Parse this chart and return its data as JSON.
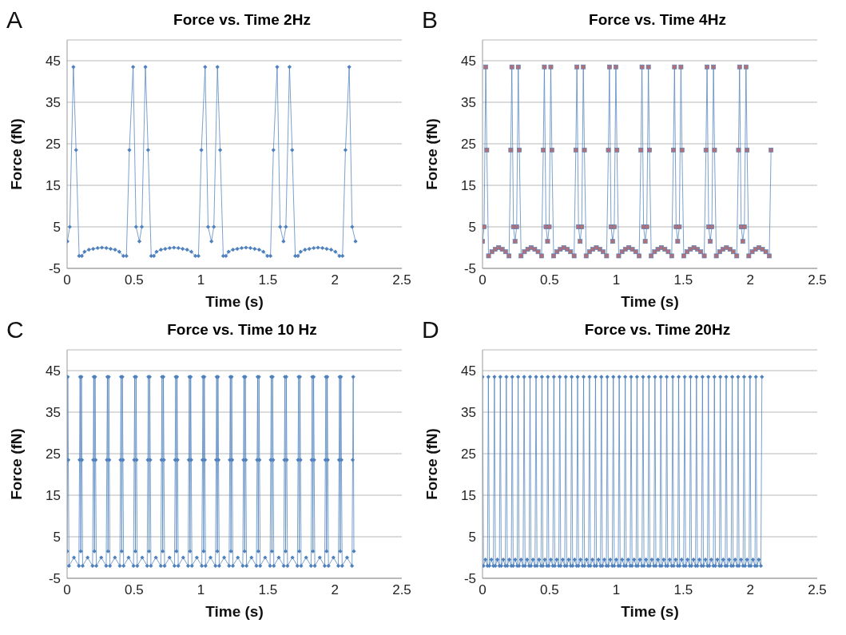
{
  "chart_data": [
    {
      "type": "line",
      "title": "Force vs. Time 2Hz",
      "xlabel": "Time (s)",
      "ylabel": "Force (fN)",
      "annotations": [
        "A"
      ],
      "xlim": [
        0,
        2.5
      ],
      "xticks": [
        0,
        0.5,
        1,
        1.5,
        2,
        2.5
      ],
      "ylim": [
        -5,
        50
      ],
      "yticks": [
        -5,
        5,
        15,
        25,
        35,
        45
      ],
      "grid": "y",
      "marker": "diamond",
      "line_style": "solid",
      "series": [
        {
          "color": "#4f81bd",
          "x": [
            0.002,
            0.02,
            0.047,
            0.067,
            0.09,
            0.11,
            0.13,
            0.163,
            0.195,
            0.228,
            0.26,
            0.293,
            0.325,
            0.358,
            0.39,
            0.42,
            0.443,
            0.465,
            0.493,
            0.515,
            0.54,
            0.558,
            0.585,
            0.605,
            0.628,
            0.648,
            0.668,
            0.701,
            0.733,
            0.766,
            0.798,
            0.831,
            0.863,
            0.896,
            0.928,
            0.958,
            0.981,
            1.003,
            1.031,
            1.053,
            1.078,
            1.096,
            1.123,
            1.143,
            1.166,
            1.186,
            1.206,
            1.239,
            1.271,
            1.304,
            1.336,
            1.369,
            1.401,
            1.434,
            1.466,
            1.496,
            1.519,
            1.541,
            1.569,
            1.591,
            1.616,
            1.634,
            1.661,
            1.681,
            1.704,
            1.724,
            1.744,
            1.777,
            1.809,
            1.842,
            1.874,
            1.907,
            1.939,
            1.972,
            2.004,
            2.034,
            2.057,
            2.079,
            2.107,
            2.129,
            2.154
          ],
          "values": [
            1.5,
            5,
            43.5,
            23.5,
            -2,
            -2,
            -1,
            -0.5,
            -0.3,
            -0.1,
            0,
            -0.1,
            -0.3,
            -0.5,
            -1,
            -2,
            -2,
            23.5,
            43.5,
            5,
            1.5,
            5,
            43.5,
            23.5,
            -2,
            -2,
            -1,
            -0.5,
            -0.3,
            -0.1,
            0,
            -0.1,
            -0.3,
            -0.5,
            -1,
            -2,
            -2,
            23.5,
            43.5,
            5,
            1.5,
            5,
            43.5,
            23.5,
            -2,
            -2,
            -1,
            -0.5,
            -0.3,
            -0.1,
            0,
            -0.1,
            -0.3,
            -0.5,
            -1,
            -2,
            -2,
            23.5,
            43.5,
            5,
            1.5,
            5,
            43.5,
            23.5,
            -2,
            -2,
            -1,
            -0.5,
            -0.3,
            -0.1,
            0,
            -0.1,
            -0.3,
            -0.5,
            -1,
            -2,
            -2,
            23.5,
            43.5,
            5,
            1.5
          ]
        }
      ]
    },
    {
      "type": "line",
      "title": "Force vs. Time 4Hz",
      "xlabel": "Time (s)",
      "ylabel": "Force (fN)",
      "annotations": [
        "B"
      ],
      "xlim": [
        0,
        2.5
      ],
      "xticks": [
        0,
        0.5,
        1,
        1.5,
        2,
        2.5
      ],
      "ylim": [
        -5,
        50
      ],
      "yticks": [
        -5,
        5,
        15,
        25,
        35,
        45
      ],
      "grid": "y",
      "marker": "square",
      "line_style": "solid",
      "series": [
        {
          "color": "#4f81bd",
          "x": [
            0,
            0.012,
            0.024,
            0.032,
            0.045,
            0.07,
            0.095,
            0.121,
            0.147,
            0.172,
            0.198,
            0.211,
            0.219,
            0.231,
            0.243,
            0.255,
            0.267,
            0.275,
            0.288,
            0.313,
            0.338,
            0.364,
            0.39,
            0.415,
            0.441,
            0.454,
            0.462,
            0.474,
            0.486,
            0.498,
            0.51,
            0.518,
            0.531,
            0.556,
            0.581,
            0.607,
            0.633,
            0.658,
            0.684,
            0.697,
            0.705,
            0.717,
            0.729,
            0.741,
            0.753,
            0.761,
            0.774,
            0.799,
            0.824,
            0.85,
            0.876,
            0.901,
            0.927,
            0.94,
            0.948,
            0.96,
            0.972,
            0.984,
            0.996,
            1.004,
            1.017,
            1.042,
            1.067,
            1.093,
            1.119,
            1.144,
            1.17,
            1.183,
            1.191,
            1.203,
            1.215,
            1.227,
            1.239,
            1.247,
            1.26,
            1.285,
            1.31,
            1.336,
            1.362,
            1.387,
            1.413,
            1.426,
            1.434,
            1.446,
            1.458,
            1.47,
            1.482,
            1.49,
            1.503,
            1.528,
            1.553,
            1.579,
            1.605,
            1.63,
            1.656,
            1.669,
            1.677,
            1.689,
            1.701,
            1.713,
            1.725,
            1.733,
            1.746,
            1.771,
            1.796,
            1.822,
            1.848,
            1.873,
            1.899,
            1.912,
            1.92,
            1.932,
            1.944,
            1.956,
            1.968,
            1.976,
            1.989,
            2.014,
            2.039,
            2.065,
            2.091,
            2.116,
            2.142,
            2.155
          ],
          "values": [
            1.5,
            5,
            43.5,
            23.5,
            -2,
            -1,
            -0.4,
            0,
            -0.4,
            -1,
            -2,
            23.5,
            43.5,
            5,
            1.5,
            5,
            43.5,
            23.5,
            -2,
            -1,
            -0.4,
            0,
            -0.4,
            -1,
            -2,
            23.5,
            43.5,
            5,
            1.5,
            5,
            43.5,
            23.5,
            -2,
            -1,
            -0.4,
            0,
            -0.4,
            -1,
            -2,
            23.5,
            43.5,
            5,
            1.5,
            5,
            43.5,
            23.5,
            -2,
            -1,
            -0.4,
            0,
            -0.4,
            -1,
            -2,
            23.5,
            43.5,
            5,
            1.5,
            5,
            43.5,
            23.5,
            -2,
            -1,
            -0.4,
            0,
            -0.4,
            -1,
            -2,
            23.5,
            43.5,
            5,
            1.5,
            5,
            43.5,
            23.5,
            -2,
            -1,
            -0.4,
            0,
            -0.4,
            -1,
            -2,
            23.5,
            43.5,
            5,
            1.5,
            5,
            43.5,
            23.5,
            -2,
            -1,
            -0.4,
            0,
            -0.4,
            -1,
            -2,
            23.5,
            43.5,
            5,
            1.5,
            5,
            43.5,
            23.5,
            -2,
            -1,
            -0.4,
            0,
            -0.4,
            -1,
            -2,
            23.5,
            43.5,
            5,
            1.5,
            5,
            43.5,
            23.5,
            -2,
            -1,
            -0.4,
            0,
            -0.4,
            -1,
            -2,
            23.5
          ]
        }
      ]
    },
    {
      "type": "line",
      "title": "Force vs. Time 10 Hz",
      "xlabel": "Time (s)",
      "ylabel": "Force (fN)",
      "annotations": [
        "C"
      ],
      "xlim": [
        0,
        2.5
      ],
      "xticks": [
        0,
        0.5,
        1,
        1.5,
        2,
        2.5
      ],
      "ylim": [
        -5,
        50
      ],
      "yticks": [
        -5,
        5,
        15,
        25,
        35,
        45
      ],
      "grid": "y",
      "marker": "diamond",
      "line_style": "solid",
      "series": [
        {
          "color": "#4f81bd",
          "x": [
            0,
            0.005,
            0.009,
            0.014,
            0.051,
            0.088,
            0.093,
            0.097,
            0.102,
            0.107,
            0.111,
            0.116,
            0.153,
            0.19,
            0.195,
            0.199,
            0.204,
            0.209,
            0.213,
            0.218,
            0.255,
            0.292,
            0.297,
            0.301,
            0.306,
            0.311,
            0.315,
            0.32,
            0.357,
            0.394,
            0.399,
            0.403,
            0.408,
            0.413,
            0.417,
            0.422,
            0.459,
            0.496,
            0.501,
            0.505,
            0.51,
            0.515,
            0.519,
            0.524,
            0.561,
            0.598,
            0.603,
            0.607,
            0.612,
            0.617,
            0.621,
            0.626,
            0.663,
            0.7,
            0.705,
            0.709,
            0.714,
            0.719,
            0.723,
            0.728,
            0.765,
            0.802,
            0.807,
            0.811,
            0.816,
            0.821,
            0.825,
            0.83,
            0.867,
            0.904,
            0.909,
            0.913,
            0.918,
            0.923,
            0.927,
            0.932,
            0.969,
            1.006,
            1.011,
            1.015,
            1.02,
            1.025,
            1.029,
            1.034,
            1.071,
            1.108,
            1.113,
            1.117,
            1.122,
            1.127,
            1.131,
            1.136,
            1.173,
            1.21,
            1.215,
            1.219,
            1.224,
            1.229,
            1.233,
            1.238,
            1.275,
            1.312,
            1.317,
            1.321,
            1.326,
            1.331,
            1.335,
            1.34,
            1.377,
            1.414,
            1.419,
            1.423,
            1.428,
            1.433,
            1.437,
            1.442,
            1.479,
            1.516,
            1.521,
            1.525,
            1.53,
            1.535,
            1.539,
            1.544,
            1.581,
            1.618,
            1.623,
            1.627,
            1.632,
            1.637,
            1.641,
            1.646,
            1.683,
            1.72,
            1.725,
            1.729,
            1.734,
            1.739,
            1.743,
            1.748,
            1.785,
            1.822,
            1.827,
            1.831,
            1.836,
            1.841,
            1.845,
            1.85,
            1.887,
            1.924,
            1.929,
            1.933,
            1.938,
            1.943,
            1.947,
            1.952,
            1.989,
            2.026,
            2.031,
            2.035,
            2.04,
            2.045,
            2.049,
            2.054,
            2.091,
            2.128,
            2.133,
            2.137,
            2.142
          ],
          "values": [
            1.5,
            43.5,
            23.5,
            -2,
            0,
            -2,
            23.5,
            43.5,
            1.5,
            43.5,
            23.5,
            -2,
            0,
            -2,
            23.5,
            43.5,
            1.5,
            43.5,
            23.5,
            -2,
            0,
            -2,
            23.5,
            43.5,
            1.5,
            43.5,
            23.5,
            -2,
            0,
            -2,
            23.5,
            43.5,
            1.5,
            43.5,
            23.5,
            -2,
            0,
            -2,
            23.5,
            43.5,
            1.5,
            43.5,
            23.5,
            -2,
            0,
            -2,
            23.5,
            43.5,
            1.5,
            43.5,
            23.5,
            -2,
            0,
            -2,
            23.5,
            43.5,
            1.5,
            43.5,
            23.5,
            -2,
            0,
            -2,
            23.5,
            43.5,
            1.5,
            43.5,
            23.5,
            -2,
            0,
            -2,
            23.5,
            43.5,
            1.5,
            43.5,
            23.5,
            -2,
            0,
            -2,
            23.5,
            43.5,
            1.5,
            43.5,
            23.5,
            -2,
            0,
            -2,
            23.5,
            43.5,
            1.5,
            43.5,
            23.5,
            -2,
            0,
            -2,
            23.5,
            43.5,
            1.5,
            43.5,
            23.5,
            -2,
            0,
            -2,
            23.5,
            43.5,
            1.5,
            43.5,
            23.5,
            -2,
            0,
            -2,
            23.5,
            43.5,
            1.5,
            43.5,
            23.5,
            -2,
            0,
            -2,
            23.5,
            43.5,
            1.5,
            43.5,
            23.5,
            -2,
            0,
            -2,
            23.5,
            43.5,
            1.5,
            43.5,
            23.5,
            -2,
            0,
            -2,
            23.5,
            43.5,
            1.5,
            43.5,
            23.5,
            -2,
            0,
            -2,
            23.5,
            43.5,
            1.5,
            43.5,
            23.5,
            -2,
            0,
            -2,
            23.5,
            43.5,
            1.5,
            43.5,
            23.5,
            -2,
            0,
            -2,
            23.5,
            43.5,
            1.5,
            43.5,
            23.5,
            -2,
            0,
            -2,
            23.5,
            43.5,
            1.5
          ]
        }
      ]
    },
    {
      "type": "line",
      "title": "Force vs. Time 20Hz",
      "xlabel": "Time (s)",
      "ylabel": "Force (fN)",
      "annotations": [
        "D"
      ],
      "xlim": [
        0,
        2.5
      ],
      "xticks": [
        0,
        0.5,
        1,
        1.5,
        2,
        2.5
      ],
      "ylim": [
        -5,
        50
      ],
      "yticks": [
        -5,
        5,
        15,
        25,
        35,
        45
      ],
      "grid": "y",
      "marker": "diamond",
      "line_style": "solid",
      "series": [
        {
          "color": "#4f81bd",
          "x": [
            0,
            0.007,
            0.022,
            0.037,
            0.044,
            0.051,
            0.066,
            0.081,
            0.089,
            0.096,
            0.111,
            0.126,
            0.133,
            0.14,
            0.155,
            0.17,
            0.178,
            0.185,
            0.2,
            0.215,
            0.222,
            0.229,
            0.244,
            0.259,
            0.266,
            0.273,
            0.288,
            0.303,
            0.311,
            0.318,
            0.333,
            0.348,
            0.355,
            0.362,
            0.377,
            0.392,
            0.4,
            0.407,
            0.422,
            0.437,
            0.444,
            0.451,
            0.466,
            0.481,
            0.488,
            0.495,
            0.51,
            0.525,
            0.533,
            0.54,
            0.555,
            0.57,
            0.577,
            0.584,
            0.599,
            0.614,
            0.622,
            0.629,
            0.644,
            0.659,
            0.666,
            0.673,
            0.688,
            0.703,
            0.71,
            0.717,
            0.732,
            0.747,
            0.755,
            0.762,
            0.777,
            0.792,
            0.799,
            0.806,
            0.821,
            0.836,
            0.844,
            0.851,
            0.866,
            0.881,
            0.888,
            0.895,
            0.91,
            0.925,
            0.932,
            0.939,
            0.954,
            0.969,
            0.977,
            0.984,
            0.999,
            1.014,
            1.021,
            1.028,
            1.043,
            1.058,
            1.066,
            1.073,
            1.088,
            1.103,
            1.11,
            1.117,
            1.132,
            1.147,
            1.154,
            1.161,
            1.176,
            1.191,
            1.199,
            1.206,
            1.221,
            1.236,
            1.243,
            1.25,
            1.265,
            1.28,
            1.288,
            1.295,
            1.31,
            1.325,
            1.332,
            1.339,
            1.354,
            1.369,
            1.376,
            1.383,
            1.398,
            1.413,
            1.421,
            1.428,
            1.443,
            1.458,
            1.465,
            1.472,
            1.487,
            1.502,
            1.51,
            1.517,
            1.532,
            1.547,
            1.554,
            1.561,
            1.576,
            1.591,
            1.598,
            1.605,
            1.62,
            1.635,
            1.643,
            1.65,
            1.665,
            1.68,
            1.687,
            1.694,
            1.709,
            1.724,
            1.732,
            1.739,
            1.754,
            1.769,
            1.776,
            1.783,
            1.798,
            1.813,
            1.82,
            1.827,
            1.842,
            1.857,
            1.865,
            1.872,
            1.887,
            1.902,
            1.909,
            1.916,
            1.931,
            1.946,
            1.954,
            1.961,
            1.976,
            1.991,
            1.998,
            2.005,
            2.02,
            2.035,
            2.042,
            2.049,
            2.064,
            2.079,
            2.087
          ],
          "values": [
            43.5,
            -2,
            -0.5,
            -2,
            43.5,
            -2,
            -0.5,
            -2,
            43.5,
            -2,
            -0.5,
            -2,
            43.5,
            -2,
            -0.5,
            -2,
            43.5,
            -2,
            -0.5,
            -2,
            43.5,
            -2,
            -0.5,
            -2,
            43.5,
            -2,
            -0.5,
            -2,
            43.5,
            -2,
            -0.5,
            -2,
            43.5,
            -2,
            -0.5,
            -2,
            43.5,
            -2,
            -0.5,
            -2,
            43.5,
            -2,
            -0.5,
            -2,
            43.5,
            -2,
            -0.5,
            -2,
            43.5,
            -2,
            -0.5,
            -2,
            43.5,
            -2,
            -0.5,
            -2,
            43.5,
            -2,
            -0.5,
            -2,
            43.5,
            -2,
            -0.5,
            -2,
            43.5,
            -2,
            -0.5,
            -2,
            43.5,
            -2,
            -0.5,
            -2,
            43.5,
            -2,
            -0.5,
            -2,
            43.5,
            -2,
            -0.5,
            -2,
            43.5,
            -2,
            -0.5,
            -2,
            43.5,
            -2,
            -0.5,
            -2,
            43.5,
            -2,
            -0.5,
            -2,
            43.5,
            -2,
            -0.5,
            -2,
            43.5,
            -2,
            -0.5,
            -2,
            43.5,
            -2,
            -0.5,
            -2,
            43.5,
            -2,
            -0.5,
            -2,
            43.5,
            -2,
            -0.5,
            -2,
            43.5,
            -2,
            -0.5,
            -2,
            43.5,
            -2,
            -0.5,
            -2,
            43.5,
            -2,
            -0.5,
            -2,
            43.5,
            -2,
            -0.5,
            -2,
            43.5,
            -2,
            -0.5,
            -2,
            43.5,
            -2,
            -0.5,
            -2,
            43.5,
            -2,
            -0.5,
            -2,
            43.5,
            -2,
            -0.5,
            -2,
            43.5,
            -2,
            -0.5,
            -2,
            43.5,
            -2,
            -0.5,
            -2,
            43.5,
            -2,
            -0.5,
            -2,
            43.5,
            -2,
            -0.5,
            -2,
            43.5,
            -2,
            -0.5,
            -2,
            43.5,
            -2,
            -0.5,
            -2,
            43.5,
            -2,
            -0.5,
            -2,
            43.5,
            -2,
            -0.5,
            -2,
            43.5,
            -2,
            -0.5,
            -2,
            43.5,
            -2,
            -0.5,
            -2,
            43.5,
            -2,
            -0.5,
            -2,
            43.5
          ]
        }
      ]
    }
  ]
}
